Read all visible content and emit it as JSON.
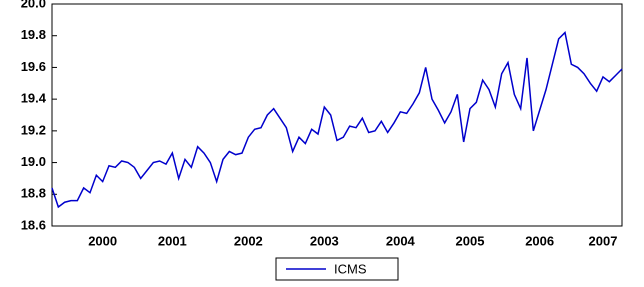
{
  "chart_data": {
    "type": "line",
    "categories": [
      null,
      null,
      null,
      null,
      null,
      null,
      null,
      null,
      "2000",
      null,
      null,
      null,
      null,
      null,
      null,
      null,
      null,
      null,
      null,
      "2001",
      null,
      null,
      null,
      null,
      null,
      null,
      null,
      null,
      null,
      null,
      null,
      "2002",
      null,
      null,
      null,
      null,
      null,
      null,
      null,
      null,
      null,
      null,
      null,
      "2003",
      null,
      null,
      null,
      null,
      null,
      null,
      null,
      null,
      null,
      null,
      null,
      "2004",
      null,
      null,
      null,
      null,
      null,
      null,
      null,
      null,
      null,
      null,
      "2005",
      null,
      null,
      null,
      null,
      null,
      null,
      null,
      null,
      null,
      null,
      "2006",
      null,
      null,
      null,
      null,
      null,
      null,
      null,
      null,
      null,
      "2007",
      null,
      null,
      null
    ],
    "series": [
      {
        "name": "ICMS",
        "color": "#0000cc",
        "values": [
          18.84,
          18.72,
          18.75,
          18.76,
          18.76,
          18.84,
          18.81,
          18.92,
          18.88,
          18.98,
          18.97,
          19.01,
          19.0,
          18.97,
          18.9,
          18.95,
          19.0,
          19.01,
          18.99,
          19.06,
          18.9,
          19.02,
          18.97,
          19.1,
          19.06,
          19.0,
          18.88,
          19.02,
          19.07,
          19.05,
          19.06,
          19.16,
          19.21,
          19.22,
          19.3,
          19.34,
          19.28,
          19.22,
          19.07,
          19.16,
          19.12,
          19.21,
          19.18,
          19.35,
          19.3,
          19.14,
          19.16,
          19.23,
          19.22,
          19.28,
          19.19,
          19.2,
          19.26,
          19.19,
          19.25,
          19.32,
          19.31,
          19.37,
          19.44,
          19.6,
          19.4,
          19.33,
          19.25,
          19.32,
          19.43,
          19.13,
          19.34,
          19.38,
          19.52,
          19.46,
          19.35,
          19.56,
          19.63,
          19.43,
          19.34,
          19.66,
          19.2,
          19.33,
          19.46,
          19.62,
          19.78,
          19.82,
          19.62,
          19.6,
          19.56,
          19.5,
          19.45,
          19.54,
          19.51,
          19.55,
          19.59
        ]
      }
    ],
    "ylim": [
      18.6,
      20.0
    ],
    "yticks": [
      18.6,
      18.8,
      {
        "value": 19.0,
        "label": "19.0"
      },
      19.2,
      19.4,
      19.6,
      19.8,
      {
        "value": 20.0,
        "label": "20.0"
      }
    ],
    "legend": "bottom"
  }
}
